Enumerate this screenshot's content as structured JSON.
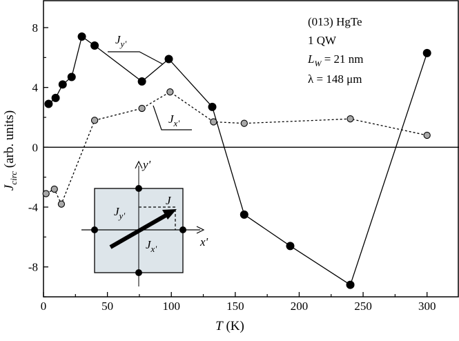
{
  "chart_data": {
    "type": "line",
    "xlabel_main": "T",
    "xlabel_unit": " (K)",
    "ylabel_main": "J",
    "ylabel_sub": "circ",
    "ylabel_unit": " (arb. units)",
    "xlim": [
      0,
      325
    ],
    "ylim": [
      -10,
      9.8
    ],
    "x_ticks": [
      0,
      50,
      100,
      150,
      200,
      250,
      300
    ],
    "y_ticks": [
      -8,
      -4,
      0,
      4,
      8
    ],
    "x_tick_labels": [
      "0",
      "50",
      "100",
      "150",
      "200",
      "250",
      "300"
    ],
    "y_tick_labels": [
      "-8",
      "-4",
      "0",
      "4",
      "8"
    ],
    "zero_line": true,
    "series": [
      {
        "name": "Jy'",
        "label_main": "J",
        "label_sub": "y'",
        "style": "solid",
        "marker_color": "#000000",
        "x": [
          4,
          9.5,
          15,
          22,
          30,
          40,
          77,
          98,
          132,
          157,
          193,
          240,
          300
        ],
        "y": [
          2.9,
          3.3,
          4.2,
          4.7,
          7.4,
          6.8,
          4.4,
          5.9,
          2.7,
          -4.5,
          -6.6,
          -9.2,
          6.3
        ]
      },
      {
        "name": "Jx'",
        "label_main": "J",
        "label_sub": "x'",
        "style": "dashed",
        "marker_color": "#a8a8a8",
        "x": [
          2,
          8.5,
          14,
          40,
          77,
          99,
          133,
          157,
          240,
          300
        ],
        "y": [
          -3.1,
          -2.8,
          -3.8,
          1.8,
          2.6,
          3.7,
          1.7,
          1.6,
          1.9,
          0.8
        ]
      }
    ],
    "annotations": {
      "lines": [
        "(013) HgTe",
        "1 QW",
        "",
        "λ = 148 μm"
      ],
      "lw_main": "L",
      "lw_sub": "W",
      "lw_value": " = 21 nm"
    },
    "inset": {
      "y_axis": "y'",
      "x_axis": "x'",
      "vector": "J",
      "comp_y_main": "J",
      "comp_y_sub": "y'",
      "comp_x_main": "J",
      "comp_x_sub": "x'",
      "fill": "#dde5ea"
    }
  }
}
